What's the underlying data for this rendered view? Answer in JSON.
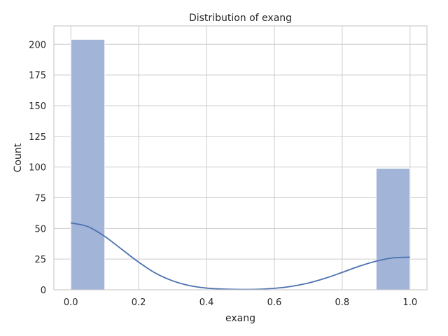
{
  "chart_data": {
    "type": "bar",
    "title": "Distribution of exang",
    "xlabel": "exang",
    "ylabel": "Count",
    "xlim": [
      -0.05,
      1.05
    ],
    "ylim": [
      0,
      215
    ],
    "xticks": [
      0.0,
      0.2,
      0.4,
      0.6,
      0.8,
      1.0
    ],
    "xtick_labels": [
      "0.0",
      "0.2",
      "0.4",
      "0.6",
      "0.8",
      "1.0"
    ],
    "yticks": [
      0,
      25,
      50,
      75,
      100,
      125,
      150,
      175,
      200
    ],
    "ytick_labels": [
      "0",
      "25",
      "50",
      "75",
      "100",
      "125",
      "150",
      "175",
      "200"
    ],
    "grid": true,
    "bins": [
      {
        "x0": 0.0,
        "x1": 0.1,
        "count": 204
      },
      {
        "x0": 0.9,
        "x1": 1.0,
        "count": 99
      }
    ],
    "kde": {
      "x": [
        0.0,
        0.05,
        0.1,
        0.15,
        0.2,
        0.25,
        0.3,
        0.35,
        0.4,
        0.45,
        0.5,
        0.55,
        0.6,
        0.65,
        0.7,
        0.75,
        0.8,
        0.85,
        0.9,
        0.95,
        1.0
      ],
      "y": [
        54.5,
        51.5,
        43.5,
        33,
        22.5,
        13.5,
        7.3,
        3.4,
        1.4,
        0.6,
        0.3,
        0.4,
        1.2,
        2.8,
        5.5,
        9.4,
        14.2,
        19.2,
        23.3,
        26,
        26.6
      ]
    },
    "colors": {
      "bar_fill": "#a2b5d8",
      "bar_stroke": "#ffffff",
      "kde_line": "#4c72b0",
      "grid": "#cccccc",
      "spine": "#cccccc",
      "background": "#ffffff"
    }
  }
}
